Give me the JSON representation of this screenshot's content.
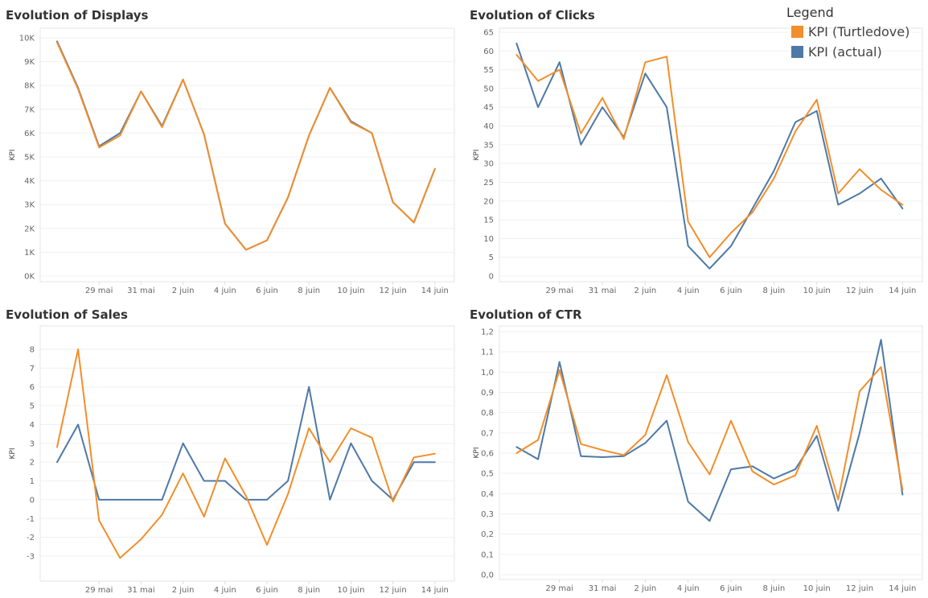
{
  "legend": {
    "title": "Legend",
    "items": [
      {
        "label": "KPI (Turtledove)",
        "color": "#F28E2B"
      },
      {
        "label": "KPI (actual)",
        "color": "#4E79A7"
      }
    ]
  },
  "chart_data": [
    {
      "type": "line",
      "title": "Evolution of Displays",
      "ylabel": "KPI",
      "xlabel": "",
      "x_ticks": [
        "29 mai",
        "31 mai",
        "2 juin",
        "4 juin",
        "6 juin",
        "8 juin",
        "10 juin",
        "12 juin",
        "14 juin"
      ],
      "y_ticks": [
        "0K",
        "1K",
        "2K",
        "3K",
        "4K",
        "5K",
        "6K",
        "7K",
        "8K",
        "9K",
        "10K"
      ],
      "y_tick_values": [
        0,
        1000,
        2000,
        3000,
        4000,
        5000,
        6000,
        7000,
        8000,
        9000,
        10000
      ],
      "ylim": [
        0,
        10000
      ],
      "x_days": [
        27,
        28,
        29,
        30,
        31,
        32,
        33,
        34,
        35,
        36,
        37,
        38,
        39,
        40,
        41,
        42,
        43,
        44,
        45,
        46
      ],
      "series": [
        {
          "name": "KPI (actual)",
          "color": "#4E79A7",
          "values": [
            9850,
            7900,
            5450,
            6000,
            7750,
            6300,
            8250,
            5950,
            2200,
            1100,
            1500,
            3300,
            5900,
            7900,
            6500,
            6000,
            3100,
            2250,
            4500,
            null
          ]
        },
        {
          "name": "KPI (Turtledove)",
          "color": "#F28E2B",
          "values": [
            9800,
            7850,
            5400,
            5900,
            7750,
            6250,
            8250,
            5950,
            2200,
            1100,
            1500,
            3300,
            5900,
            7900,
            6450,
            6000,
            3100,
            2250,
            4500,
            null
          ]
        }
      ]
    },
    {
      "type": "line",
      "title": "Evolution of Clicks",
      "ylabel": "KPI",
      "xlabel": "",
      "x_ticks": [
        "29 mai",
        "31 mai",
        "2 juin",
        "4 juin",
        "6 juin",
        "8 juin",
        "10 juin",
        "12 juin",
        "14 juin"
      ],
      "y_ticks": [
        "0",
        "5",
        "10",
        "15",
        "20",
        "25",
        "30",
        "35",
        "40",
        "45",
        "50",
        "55",
        "60",
        "65"
      ],
      "y_tick_values": [
        0,
        5,
        10,
        15,
        20,
        25,
        30,
        35,
        40,
        45,
        50,
        55,
        60,
        65
      ],
      "ylim": [
        0,
        65
      ],
      "x_days": [
        27,
        28,
        29,
        30,
        31,
        32,
        33,
        34,
        35,
        36,
        37,
        38,
        39,
        40,
        41,
        42,
        43,
        44,
        45,
        46
      ],
      "series": [
        {
          "name": "KPI (actual)",
          "color": "#4E79A7",
          "values": [
            62,
            45,
            57,
            35,
            45,
            37,
            54,
            45,
            8,
            2,
            8,
            18,
            28,
            41,
            44,
            19,
            22,
            26,
            18,
            null
          ]
        },
        {
          "name": "KPI (Turtledove)",
          "color": "#F28E2B",
          "values": [
            59,
            52,
            55,
            38,
            47.5,
            36.5,
            57,
            58.5,
            14.5,
            5,
            11.5,
            17,
            26,
            38.5,
            47,
            22,
            28.5,
            23,
            19,
            null
          ]
        }
      ]
    },
    {
      "type": "line",
      "title": "Evolution of Sales",
      "ylabel": "KPI",
      "xlabel": "",
      "x_ticks": [
        "29 mai",
        "31 mai",
        "2 juin",
        "4 juin",
        "6 juin",
        "8 juin",
        "10 juin",
        "12 juin",
        "14 juin"
      ],
      "y_ticks": [
        "-3",
        "-2",
        "-1",
        "0",
        "1",
        "2",
        "3",
        "4",
        "5",
        "6",
        "7",
        "8"
      ],
      "y_tick_values": [
        -3,
        -2,
        -1,
        0,
        1,
        2,
        3,
        4,
        5,
        6,
        7,
        8
      ],
      "ylim": [
        -3.6,
        8.6
      ],
      "x_days": [
        27,
        28,
        29,
        30,
        31,
        32,
        33,
        34,
        35,
        36,
        37,
        38,
        39,
        40,
        41,
        42,
        43,
        44,
        45,
        46
      ],
      "series": [
        {
          "name": "KPI (actual)",
          "color": "#4E79A7",
          "values": [
            2,
            4,
            0,
            0,
            0,
            0,
            3,
            1,
            1,
            0,
            0,
            1,
            6,
            0,
            3,
            1,
            0,
            2,
            2,
            null
          ]
        },
        {
          "name": "KPI (Turtledove)",
          "color": "#F28E2B",
          "values": [
            2.8,
            8,
            -1.1,
            -3.1,
            -2.1,
            -0.8,
            1.4,
            -0.9,
            2.2,
            0.2,
            -2.4,
            0.3,
            3.8,
            2.0,
            3.8,
            3.3,
            -0.1,
            2.25,
            2.45,
            null
          ]
        }
      ]
    },
    {
      "type": "line",
      "title": "Evolution of CTR",
      "ylabel": "KPI",
      "xlabel": "",
      "x_ticks": [
        "29 mai",
        "31 mai",
        "2 juin",
        "4 juin",
        "6 juin",
        "8 juin",
        "10 juin",
        "12 juin",
        "14 juin"
      ],
      "y_ticks": [
        "0,0",
        "0,1",
        "0,2",
        "0,3",
        "0,4",
        "0,5",
        "0,6",
        "0,7",
        "0,8",
        "0,9",
        "1,0",
        "1,1",
        "1,2"
      ],
      "y_tick_values": [
        0,
        0.1,
        0.2,
        0.3,
        0.4,
        0.5,
        0.6,
        0.7,
        0.8,
        0.9,
        1.0,
        1.1,
        1.2
      ],
      "ylim": [
        0,
        1.2
      ],
      "x_days": [
        27,
        28,
        29,
        30,
        31,
        32,
        33,
        34,
        35,
        36,
        37,
        38,
        39,
        40,
        41,
        42,
        43,
        44,
        45,
        46
      ],
      "series": [
        {
          "name": "KPI (actual)",
          "color": "#4E79A7",
          "values": [
            0.63,
            0.57,
            1.05,
            0.585,
            0.58,
            0.585,
            0.65,
            0.76,
            0.36,
            0.265,
            0.52,
            0.535,
            0.475,
            0.52,
            0.685,
            0.315,
            0.7,
            1.16,
            0.395,
            null
          ]
        },
        {
          "name": "KPI (Turtledove)",
          "color": "#F28E2B",
          "values": [
            0.6,
            0.665,
            1.01,
            0.645,
            0.615,
            0.59,
            0.69,
            0.985,
            0.655,
            0.495,
            0.76,
            0.51,
            0.445,
            0.49,
            0.735,
            0.37,
            0.905,
            1.025,
            0.42,
            null
          ]
        }
      ]
    }
  ]
}
